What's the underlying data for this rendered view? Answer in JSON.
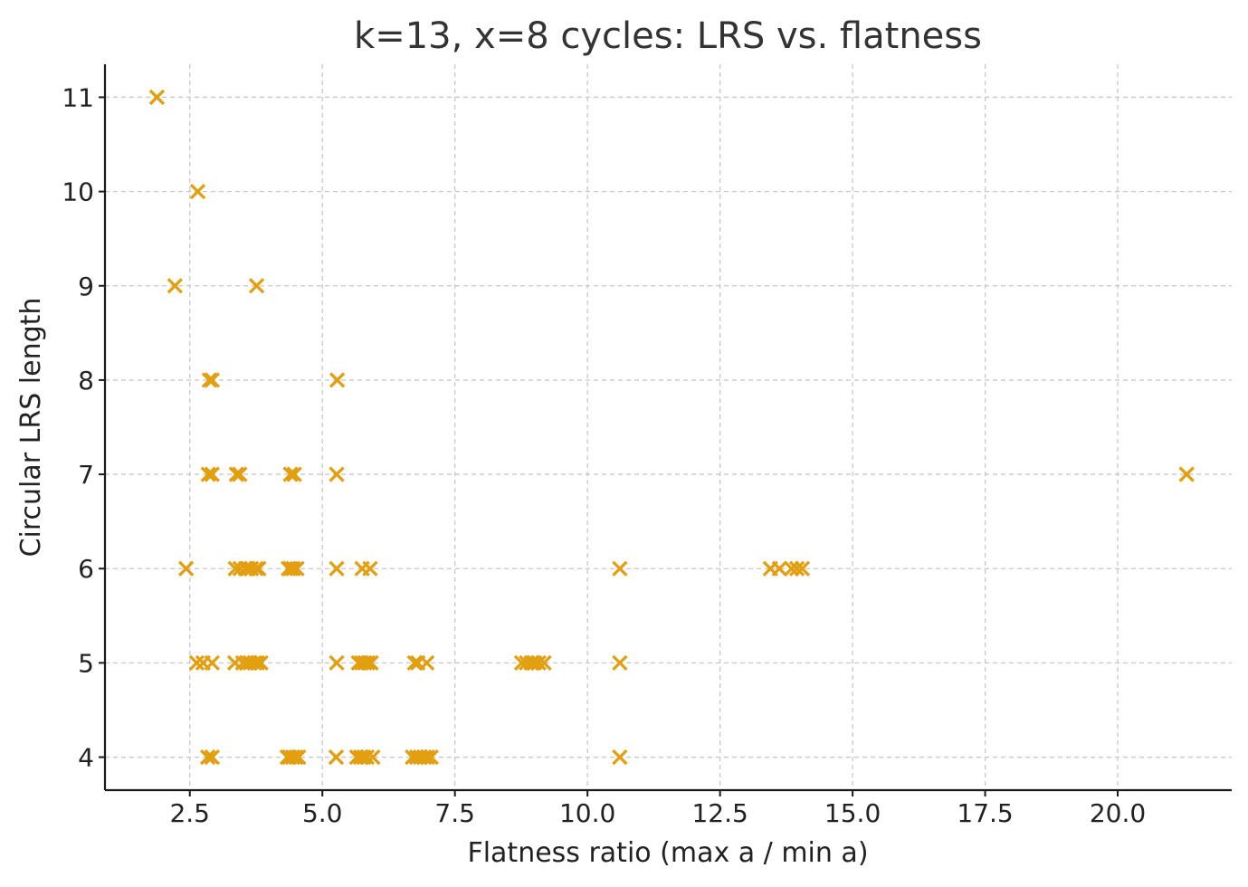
{
  "chart_data": {
    "type": "scatter",
    "title": "k=13, x=8 cycles: LRS vs. flatness",
    "xlabel": "Flatness ratio (max a / min a)",
    "ylabel": "Circular LRS length",
    "xlim": [
      0.9,
      22.15
    ],
    "ylim": [
      3.65,
      11.35
    ],
    "xticks": [
      2.5,
      5.0,
      7.5,
      10.0,
      12.5,
      15.0,
      17.5,
      20.0
    ],
    "xtick_labels": [
      "2.5",
      "5.0",
      "7.5",
      "10.0",
      "12.5",
      "15.0",
      "17.5",
      "20.0"
    ],
    "yticks": [
      4,
      5,
      6,
      7,
      8,
      9,
      10,
      11
    ],
    "ytick_labels": [
      "4",
      "5",
      "6",
      "7",
      "8",
      "9",
      "10",
      "11"
    ],
    "grid": true,
    "marker": "x",
    "marker_color": "#E29F10",
    "points": [
      {
        "x": 1.88,
        "y": 11
      },
      {
        "x": 2.65,
        "y": 10
      },
      {
        "x": 2.22,
        "y": 9
      },
      {
        "x": 3.76,
        "y": 9
      },
      {
        "x": 2.87,
        "y": 8
      },
      {
        "x": 2.92,
        "y": 8
      },
      {
        "x": 5.28,
        "y": 8
      },
      {
        "x": 2.85,
        "y": 7
      },
      {
        "x": 2.92,
        "y": 7
      },
      {
        "x": 3.38,
        "y": 7
      },
      {
        "x": 3.44,
        "y": 7
      },
      {
        "x": 4.4,
        "y": 7
      },
      {
        "x": 4.47,
        "y": 7
      },
      {
        "x": 5.27,
        "y": 7
      },
      {
        "x": 21.3,
        "y": 7
      },
      {
        "x": 2.43,
        "y": 6
      },
      {
        "x": 3.36,
        "y": 6
      },
      {
        "x": 3.45,
        "y": 6
      },
      {
        "x": 3.55,
        "y": 6
      },
      {
        "x": 3.6,
        "y": 6
      },
      {
        "x": 3.66,
        "y": 6
      },
      {
        "x": 3.75,
        "y": 6
      },
      {
        "x": 3.8,
        "y": 6
      },
      {
        "x": 4.36,
        "y": 6
      },
      {
        "x": 4.4,
        "y": 6
      },
      {
        "x": 4.45,
        "y": 6
      },
      {
        "x": 4.52,
        "y": 6
      },
      {
        "x": 5.27,
        "y": 6
      },
      {
        "x": 5.75,
        "y": 6
      },
      {
        "x": 5.9,
        "y": 6
      },
      {
        "x": 10.61,
        "y": 6
      },
      {
        "x": 13.45,
        "y": 6
      },
      {
        "x": 13.62,
        "y": 6
      },
      {
        "x": 13.85,
        "y": 6
      },
      {
        "x": 13.95,
        "y": 6
      },
      {
        "x": 14.05,
        "y": 6
      },
      {
        "x": 2.63,
        "y": 5
      },
      {
        "x": 2.75,
        "y": 5
      },
      {
        "x": 2.92,
        "y": 5
      },
      {
        "x": 3.35,
        "y": 5
      },
      {
        "x": 3.5,
        "y": 5
      },
      {
        "x": 3.58,
        "y": 5
      },
      {
        "x": 3.64,
        "y": 5
      },
      {
        "x": 3.72,
        "y": 5
      },
      {
        "x": 3.77,
        "y": 5
      },
      {
        "x": 3.84,
        "y": 5
      },
      {
        "x": 5.27,
        "y": 5
      },
      {
        "x": 5.68,
        "y": 5
      },
      {
        "x": 5.74,
        "y": 5
      },
      {
        "x": 5.8,
        "y": 5
      },
      {
        "x": 5.86,
        "y": 5
      },
      {
        "x": 5.92,
        "y": 5
      },
      {
        "x": 6.74,
        "y": 5
      },
      {
        "x": 6.8,
        "y": 5
      },
      {
        "x": 6.97,
        "y": 5
      },
      {
        "x": 8.76,
        "y": 5
      },
      {
        "x": 8.85,
        "y": 5
      },
      {
        "x": 8.94,
        "y": 5
      },
      {
        "x": 9.0,
        "y": 5
      },
      {
        "x": 9.08,
        "y": 5
      },
      {
        "x": 9.18,
        "y": 5
      },
      {
        "x": 10.61,
        "y": 5
      },
      {
        "x": 2.84,
        "y": 4
      },
      {
        "x": 2.92,
        "y": 4
      },
      {
        "x": 4.34,
        "y": 4
      },
      {
        "x": 4.38,
        "y": 4
      },
      {
        "x": 4.44,
        "y": 4
      },
      {
        "x": 4.5,
        "y": 4
      },
      {
        "x": 4.55,
        "y": 4
      },
      {
        "x": 5.26,
        "y": 4
      },
      {
        "x": 5.65,
        "y": 4
      },
      {
        "x": 5.72,
        "y": 4
      },
      {
        "x": 5.78,
        "y": 4
      },
      {
        "x": 5.84,
        "y": 4
      },
      {
        "x": 5.95,
        "y": 4
      },
      {
        "x": 6.7,
        "y": 4
      },
      {
        "x": 6.78,
        "y": 4
      },
      {
        "x": 6.85,
        "y": 4
      },
      {
        "x": 6.92,
        "y": 4
      },
      {
        "x": 6.98,
        "y": 4
      },
      {
        "x": 7.05,
        "y": 4
      },
      {
        "x": 10.61,
        "y": 4
      }
    ]
  }
}
